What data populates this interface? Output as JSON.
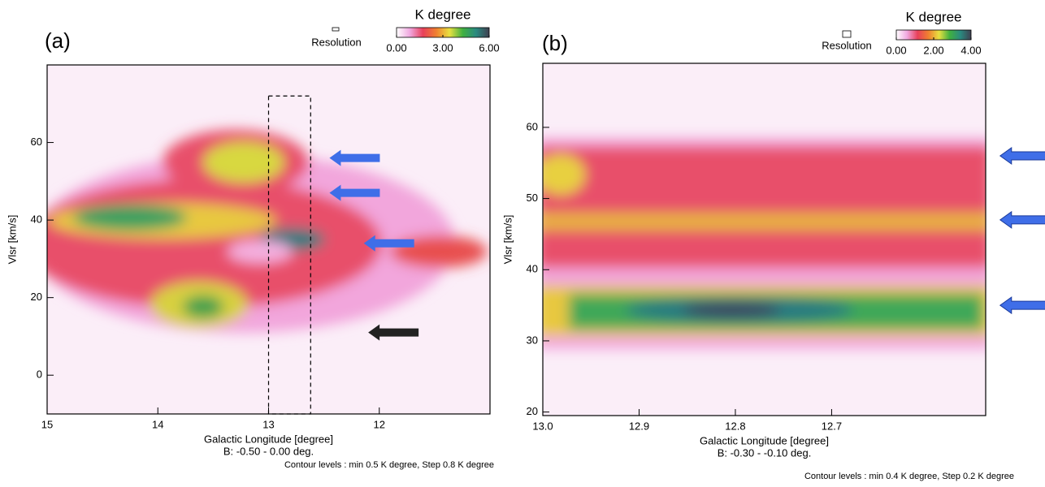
{
  "chart_data": [
    {
      "type": "heatmap",
      "title": "(a)",
      "colorbar_title": "K degree",
      "resolution_label": "Resolution",
      "xlabel": "Galactic Longitude [degree]",
      "ylabel": "Vlsr [km/s]",
      "subtitle": "B: -0.50 - 0.00 deg.",
      "note": "Contour levels : min 0.5 K degree, Step 0.8 K degree",
      "xlim": [
        15,
        11
      ],
      "ylim": [
        -10,
        80
      ],
      "xticks": [
        15,
        14,
        13,
        12
      ],
      "yticks": [
        0,
        20,
        40,
        60
      ],
      "clim": [
        0,
        6
      ],
      "cticks": [
        {
          "value": 0,
          "label": "0.00"
        },
        {
          "value": 3,
          "label": "3.00"
        },
        {
          "value": 6,
          "label": "6.00"
        }
      ],
      "colormap": [
        "#ffffff",
        "#f0a8e0",
        "#e8405a",
        "#f08030",
        "#e8e040",
        "#40b040",
        "#2a8a80",
        "#404050"
      ],
      "region": {
        "x": [
          13.0,
          12.62
        ],
        "y": [
          -10,
          72
        ]
      },
      "arrows": [
        {
          "x": 12.45,
          "y": 56,
          "color": "#3f6ee8"
        },
        {
          "x": 12.45,
          "y": 47,
          "color": "#3f6ee8"
        },
        {
          "x": 12.14,
          "y": 34,
          "color": "#3f6ee8"
        },
        {
          "x": 12.1,
          "y": 11,
          "color": "#222222"
        }
      ]
    },
    {
      "type": "heatmap",
      "title": "(b)",
      "colorbar_title": "K degree",
      "resolution_label": "Resolution",
      "xlabel": "Galactic Longitude [degree]",
      "ylabel": "Vlsr [km/s]",
      "subtitle": "B: -0.30 - -0.10 deg.",
      "note": "Contour levels : min 0.4 K degree, Step 0.2 K degree",
      "xlim": [
        13.0,
        12.54
      ],
      "ylim": [
        19.5,
        69
      ],
      "xticks": [
        {
          "value": 13.0,
          "label": "13.0"
        },
        12.9,
        12.8,
        12.7
      ],
      "yticks": [
        20,
        30,
        40,
        50,
        60
      ],
      "clim": [
        0,
        4
      ],
      "cticks": [
        {
          "value": 0,
          "label": "0.00"
        },
        {
          "value": 2,
          "label": "2.00"
        },
        {
          "value": 4,
          "label": "4.00"
        }
      ],
      "colormap": [
        "#ffffff",
        "#f0a8e0",
        "#e8405a",
        "#f08030",
        "#e8e040",
        "#40b040",
        "#2a8a80",
        "#404050"
      ],
      "arrows": [
        {
          "x": 12.525,
          "y": 56,
          "color": "#3f6ee8"
        },
        {
          "x": 12.525,
          "y": 47,
          "color": "#3f6ee8"
        },
        {
          "x": 12.525,
          "y": 35,
          "color": "#3f6ee8"
        }
      ]
    }
  ]
}
